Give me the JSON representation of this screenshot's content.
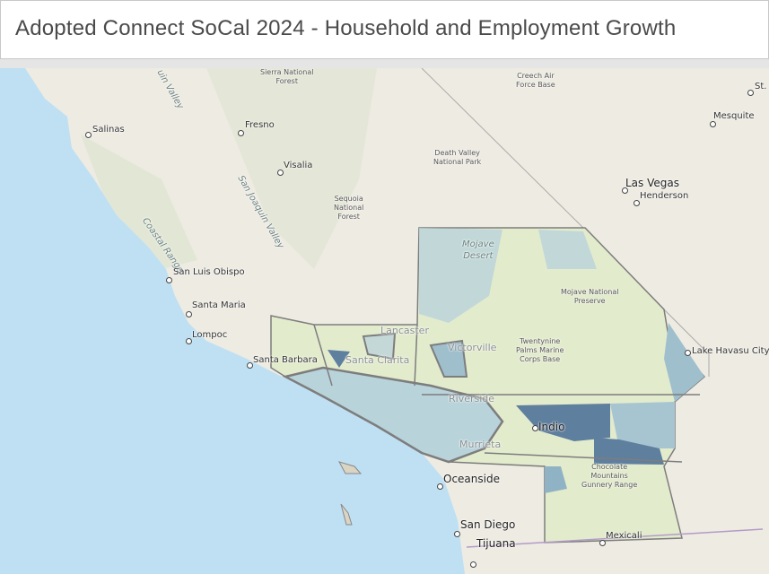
{
  "header": {
    "title": "Adopted Connect SoCal 2024 - Household and Employment Growth"
  },
  "map": {
    "colors": {
      "ocean": "#bfe0f3",
      "land": "#eeebe2",
      "region_fill": "#e3ebcd",
      "growth_light": "#b9d3db",
      "growth_medium": "#8fb3c4",
      "growth_high": "#5f7f9f",
      "boundary": "#7d7d7d"
    },
    "labels": {
      "salinas": "Salinas",
      "fresno": "Fresno",
      "visalia": "Visalia",
      "san_luis_obispo": "San Luis Obispo",
      "santa_maria": "Santa Maria",
      "lompoc": "Lompoc",
      "santa_barbara": "Santa Barbara",
      "lancaster": "Lancaster",
      "santa_clarita": "Santa Clarita",
      "victorville": "Victorville",
      "riverside": "Riverside",
      "murrieta": "Murrieta",
      "indio": "Indio",
      "oceanside": "Oceanside",
      "san_diego": "San Diego",
      "tijuana": "Tijuana",
      "mexicali": "Mexicali",
      "las_vegas": "Las Vegas",
      "henderson": "Henderson",
      "mesquite": "Mesquite",
      "lake_havasu_city": "Lake Havasu City",
      "st_george": "St. G",
      "sierra_nf_1": "Sierra National",
      "sierra_nf_2": "Forest",
      "sequoia_1": "Sequoia",
      "sequoia_2": "National",
      "sequoia_3": "Forest",
      "death_valley_1": "Death Valley",
      "death_valley_2": "National Park",
      "creech_1": "Creech Air",
      "creech_2": "Force Base",
      "mojave_np_1": "Mojave National",
      "mojave_np_2": "Preserve",
      "twentynine_1": "Twentynine",
      "twentynine_2": "Palms Marine",
      "twentynine_3": "Corps Base",
      "chocolate_1": "Chocolate",
      "chocolate_2": "Mountains",
      "chocolate_3": "Gunnery Range",
      "mojave_desert_1": "Mojave",
      "mojave_desert_2": "Desert",
      "coastal_range": "Coastal Range",
      "san_joaquin_valley": "San Joaquin Valley",
      "joaquin_valley_top": "uin Valley"
    }
  }
}
